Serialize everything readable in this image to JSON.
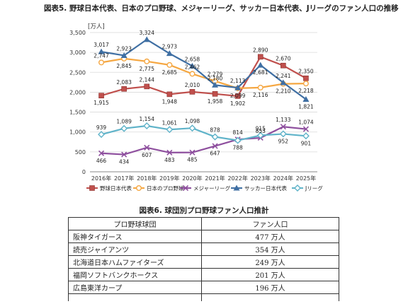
{
  "chart_title": "図表5. 野球日本代表、日本のプロ野球、メジャーリーグ、サッカー日本代表、Jリーグのファン人口の推移",
  "chart_data": {
    "type": "line",
    "ylabel": "[万人]",
    "ylim": [
      0,
      3500
    ],
    "yticks": [
      0,
      500,
      1000,
      1500,
      2000,
      2500,
      3000,
      3500
    ],
    "ytick_labels": [
      "0",
      "500",
      "1,000",
      "1,500",
      "2,000",
      "2,500",
      "3,000",
      "3,500"
    ],
    "categories": [
      "2016年",
      "2017年",
      "2018年",
      "2019年",
      "2020年",
      "2021年",
      "2022年",
      "2023年",
      "2024年",
      "2025年"
    ],
    "legend_position": "bottom",
    "series": [
      {
        "name": "野球日本代表",
        "color": "#c0504d",
        "marker": "square",
        "values": [
          1915,
          2083,
          2144,
          1948,
          2010,
          1958,
          1902,
          2890,
          2670,
          2350
        ],
        "labels": [
          "1,915",
          "2,083",
          "2,144",
          "1,948",
          "2,010",
          "1,958",
          "1,902",
          "2,890",
          "2,670",
          "2,350"
        ]
      },
      {
        "name": "日本のプロ野球",
        "color": "#f5a742",
        "marker": "circle",
        "values": [
          2747,
          2845,
          2775,
          2685,
          2462,
          2279,
          2099,
          2116,
          2210,
          2218
        ],
        "labels": [
          "2,747",
          "2,845",
          "2,775",
          "2,685",
          "2,462",
          "2,279",
          "2,099",
          "2,116",
          "2,210",
          "2,218"
        ]
      },
      {
        "name": "メジャーリーグ",
        "color": "#8e4f9e",
        "marker": "cross",
        "values": [
          466,
          434,
          607,
          483,
          485,
          647,
          814,
          853,
          1133,
          1074
        ],
        "labels": [
          "466",
          "434",
          "607",
          "483",
          "485",
          "647",
          "814",
          "853",
          "1,133",
          "1,074"
        ]
      },
      {
        "name": "サッカー日本代表",
        "color": "#3f6fa3",
        "marker": "triangle",
        "values": [
          3017,
          2923,
          3324,
          2973,
          2658,
          2180,
          2113,
          2681,
          2241,
          1821
        ],
        "labels": [
          "3,017",
          "2,923",
          "3,324",
          "2,973",
          "2,658",
          "2,180",
          "2,113",
          "2,681",
          "2,241",
          "1,821"
        ]
      },
      {
        "name": "Jリーグ",
        "color": "#5fb3c9",
        "marker": "diamond",
        "values": [
          939,
          1089,
          1154,
          1061,
          1098,
          878,
          788,
          915,
          952,
          901
        ],
        "labels": [
          "939",
          "1,089",
          "1,154",
          "1,061",
          "1,098",
          "878",
          "788",
          "915",
          "952",
          "901"
        ]
      }
    ]
  },
  "table_title": "図表6. 球団別プロ野球ファン人口推計",
  "table": {
    "headers": [
      "プロ野球球団",
      "ファン人口"
    ],
    "rows": [
      {
        "team": "阪神タイガース",
        "fans": "477 万人"
      },
      {
        "team": "読売ジャイアンツ",
        "fans": "354 万人"
      },
      {
        "team": "北海道日本ハムファイターズ",
        "fans": "249 万人"
      },
      {
        "team": "福岡ソフトバンクホークス",
        "fans": "201 万人"
      },
      {
        "team": "広島東洋カープ",
        "fans": "196 万人"
      }
    ]
  }
}
